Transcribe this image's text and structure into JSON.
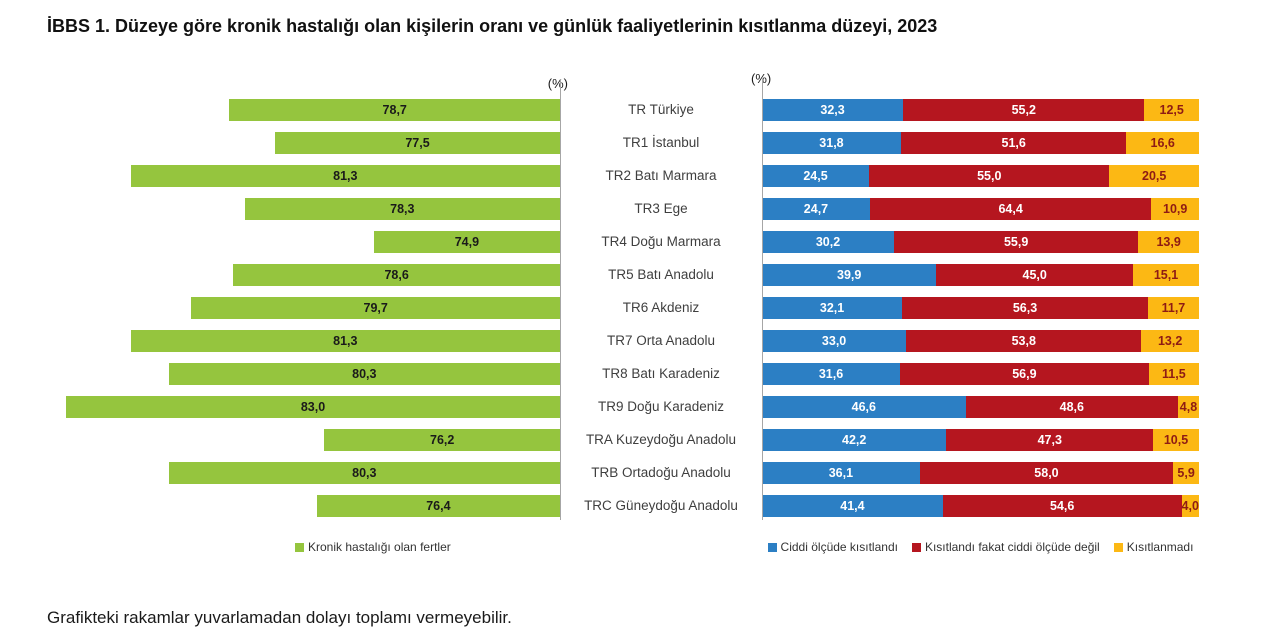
{
  "page": {
    "title": "İBBS 1. Düzeye göre kronik hastalığı olan kişilerin oranı ve günlük faaliyetlerinin kısıtlanma düzeyi, 2023",
    "footnote": "Grafikteki rakamlar yuvarlamadan dolayı toplamı vermeyebilir."
  },
  "colors": {
    "green": "#95C53E",
    "blue": "#2C7FC4",
    "red": "#B5161F",
    "yellow": "#FCB814",
    "yellow_label_text": "#8E1B14",
    "axis_line": "#A6A6A6"
  },
  "chart_data": [
    {
      "type": "bar",
      "orientation": "horizontal-right-aligned",
      "unit_label": "(%)",
      "axis": {
        "min": 70,
        "max": 83.5
      },
      "grid": false,
      "legend_position": "bottom",
      "categories": [
        "TR Türkiye",
        "TR1 İstanbul",
        "TR2 Batı Marmara",
        "TR3 Ege",
        "TR4 Doğu Marmara",
        "TR5 Batı Anadolu",
        "TR6 Akdeniz",
        "TR7 Orta Anadolu",
        "TR8 Batı Karadeniz",
        "TR9 Doğu Karadeniz",
        "TRA Kuzeydoğu Anadolu",
        "TRB Ortadoğu Anadolu",
        "TRC Güneydoğu Anadolu"
      ],
      "series": [
        {
          "name": "Kronik hastalığı olan fertler",
          "color": "#95C53E",
          "values": [
            78.7,
            77.5,
            81.3,
            78.3,
            74.9,
            78.6,
            79.7,
            81.3,
            80.3,
            83.0,
            76.2,
            80.3,
            76.4
          ]
        }
      ]
    },
    {
      "type": "bar",
      "subtype": "stacked-100",
      "orientation": "horizontal",
      "unit_label": "(%)",
      "axis": {
        "min": 0,
        "max": 100
      },
      "grid": false,
      "legend_position": "bottom",
      "categories": [
        "TR Türkiye",
        "TR1 İstanbul",
        "TR2 Batı Marmara",
        "TR3 Ege",
        "TR4 Doğu Marmara",
        "TR5 Batı Anadolu",
        "TR6 Akdeniz",
        "TR7 Orta Anadolu",
        "TR8 Batı Karadeniz",
        "TR9 Doğu Karadeniz",
        "TRA Kuzeydoğu Anadolu",
        "TRB Ortadoğu Anadolu",
        "TRC Güneydoğu Anadolu"
      ],
      "series": [
        {
          "name": "Ciddi ölçüde kısıtlandı",
          "color": "#2C7FC4",
          "values": [
            32.3,
            31.8,
            24.5,
            24.7,
            30.2,
            39.9,
            32.1,
            33.0,
            31.6,
            46.6,
            42.2,
            36.1,
            41.4
          ]
        },
        {
          "name": "Kısıtlandı fakat ciddi ölçüde değil",
          "color": "#B5161F",
          "values": [
            55.2,
            51.6,
            55.0,
            64.4,
            55.9,
            45.0,
            56.3,
            53.8,
            56.9,
            48.6,
            47.3,
            58.0,
            54.6
          ]
        },
        {
          "name": "Kısıtlanmadı",
          "color": "#FCB814",
          "values": [
            12.5,
            16.6,
            20.5,
            10.9,
            13.9,
            15.1,
            11.7,
            13.2,
            11.5,
            4.8,
            10.5,
            5.9,
            4.0
          ]
        }
      ]
    }
  ]
}
